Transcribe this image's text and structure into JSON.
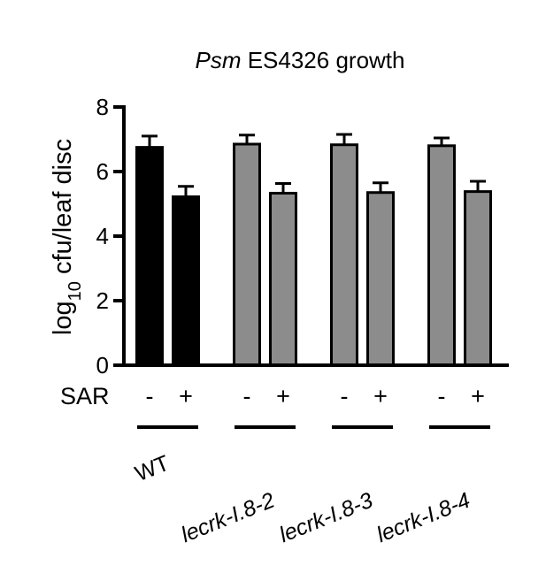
{
  "chart_data": {
    "type": "bar",
    "title_italic": "Psm",
    "title_rest": " ES4326 growth",
    "ylabel_main": "log",
    "ylabel_sub": "10",
    "ylabel_rest": " cfu/leaf disc",
    "ylim": [
      0,
      8
    ],
    "yticks": [
      "0",
      "2",
      "4",
      "6",
      "8"
    ],
    "sar_row_label": "SAR",
    "groups": [
      {
        "label": "WT",
        "italic": false,
        "color": "#000000"
      },
      {
        "label": "lecrk-I.8-2",
        "italic": true,
        "color": "#8c8c8c"
      },
      {
        "label": "lecrk-I.8-3",
        "italic": true,
        "color": "#8c8c8c"
      },
      {
        "label": "lecrk-I.8-4",
        "italic": true,
        "color": "#8c8c8c"
      }
    ],
    "bars": [
      {
        "group": 0,
        "sar": "-",
        "value": 6.75,
        "error": 0.35
      },
      {
        "group": 0,
        "sar": "+",
        "value": 5.22,
        "error": 0.32
      },
      {
        "group": 1,
        "sar": "-",
        "value": 6.85,
        "error": 0.28
      },
      {
        "group": 1,
        "sar": "+",
        "value": 5.33,
        "error": 0.3
      },
      {
        "group": 2,
        "sar": "-",
        "value": 6.83,
        "error": 0.32
      },
      {
        "group": 2,
        "sar": "+",
        "value": 5.35,
        "error": 0.3
      },
      {
        "group": 3,
        "sar": "-",
        "value": 6.8,
        "error": 0.24
      },
      {
        "group": 3,
        "sar": "+",
        "value": 5.38,
        "error": 0.32
      }
    ]
  }
}
